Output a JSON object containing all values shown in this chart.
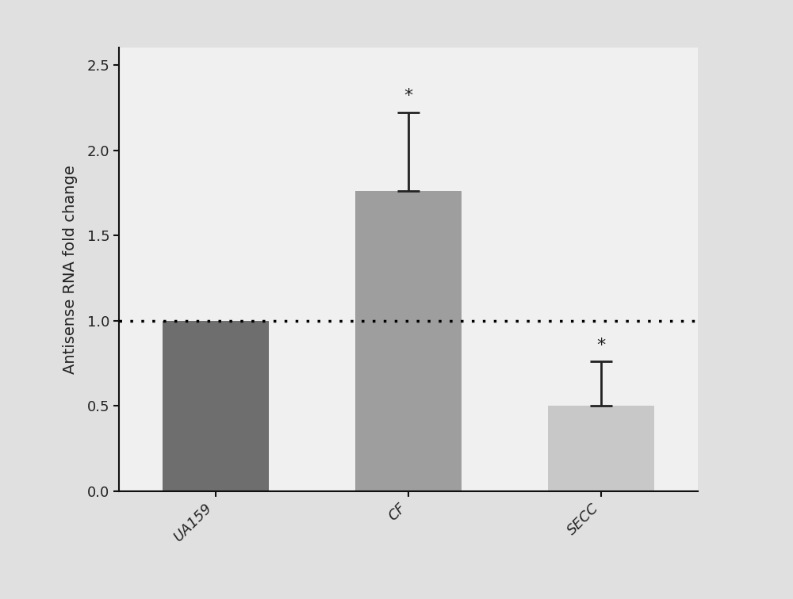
{
  "categories": [
    "UA159",
    "CF",
    "SECC"
  ],
  "values": [
    1.0,
    1.76,
    0.5
  ],
  "errors_upper": [
    0.0,
    0.46,
    0.26
  ],
  "errors_lower": [
    0.0,
    0.0,
    0.0
  ],
  "bar_colors": [
    "#6e6e6e",
    "#9e9e9e",
    "#c8c8c8"
  ],
  "ylabel": "Antisense RNA fold change",
  "ylim": [
    0,
    2.6
  ],
  "yticks": [
    0.0,
    0.5,
    1.0,
    1.5,
    2.0,
    2.5
  ],
  "dotted_line_y": 1.0,
  "significance_bars": [
    1,
    2
  ],
  "figure_bg": "#e0e0e0",
  "axes_bg": "#f0f0f0",
  "bar_width": 0.55,
  "ylabel_fontsize": 14,
  "tick_fontsize": 13,
  "error_capsize": 10,
  "error_linewidth": 2.0
}
